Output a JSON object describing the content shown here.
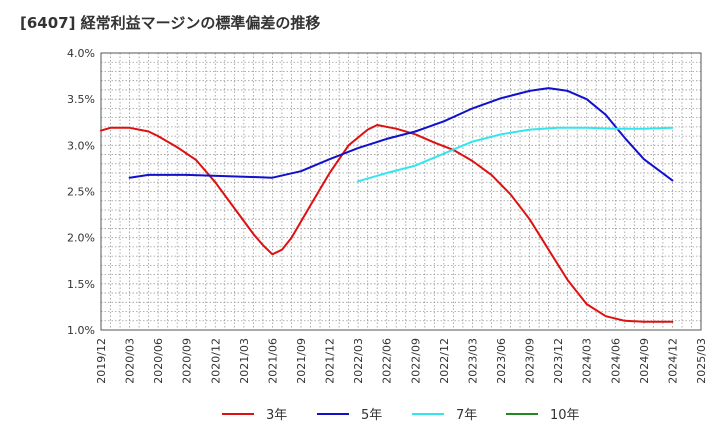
{
  "chart_data": {
    "type": "line",
    "title": "[6407]  経常利益マージンの標準偏差の推移",
    "xlabel": "",
    "ylabel": "",
    "x_categories": [
      "2019/12",
      "2020/03",
      "2020/06",
      "2020/09",
      "2020/12",
      "2021/03",
      "2021/06",
      "2021/09",
      "2021/12",
      "2022/03",
      "2022/06",
      "2022/09",
      "2022/12",
      "2023/03",
      "2023/06",
      "2023/09",
      "2023/12",
      "2024/03",
      "2024/06",
      "2024/09",
      "2024/12",
      "2025/03"
    ],
    "y_ticks": [
      "1.0%",
      "1.5%",
      "2.0%",
      "2.5%",
      "3.0%",
      "3.5%",
      "4.0%"
    ],
    "ylim": [
      1.0,
      4.0
    ],
    "grid": true,
    "legend_position": "bottom",
    "series": [
      {
        "name": "3年",
        "color": "#dd1111",
        "points": [
          [
            "2019/12",
            3.16
          ],
          [
            "2020/01",
            3.19
          ],
          [
            "2020/03",
            3.19
          ],
          [
            "2020/05",
            3.15
          ],
          [
            "2020/06",
            3.1
          ],
          [
            "2020/08",
            2.98
          ],
          [
            "2020/10",
            2.84
          ],
          [
            "2020/12",
            2.6
          ],
          [
            "2021/02",
            2.32
          ],
          [
            "2021/04",
            2.04
          ],
          [
            "2021/05",
            1.92
          ],
          [
            "2021/06",
            1.82
          ],
          [
            "2021/07",
            1.87
          ],
          [
            "2021/08",
            2.0
          ],
          [
            "2021/10",
            2.35
          ],
          [
            "2021/12",
            2.7
          ],
          [
            "2022/02",
            3.0
          ],
          [
            "2022/04",
            3.17
          ],
          [
            "2022/05",
            3.22
          ],
          [
            "2022/07",
            3.18
          ],
          [
            "2022/09",
            3.12
          ],
          [
            "2022/11",
            3.03
          ],
          [
            "2023/01",
            2.95
          ],
          [
            "2023/03",
            2.83
          ],
          [
            "2023/05",
            2.68
          ],
          [
            "2023/07",
            2.47
          ],
          [
            "2023/09",
            2.2
          ],
          [
            "2023/11",
            1.87
          ],
          [
            "2024/01",
            1.54
          ],
          [
            "2024/03",
            1.28
          ],
          [
            "2024/05",
            1.15
          ],
          [
            "2024/07",
            1.1
          ],
          [
            "2024/09",
            1.09
          ],
          [
            "2024/12",
            1.09
          ]
        ]
      },
      {
        "name": "5年",
        "color": "#1111cc",
        "points": [
          [
            "2020/03",
            2.65
          ],
          [
            "2020/05",
            2.68
          ],
          [
            "2020/09",
            2.68
          ],
          [
            "2021/03",
            2.66
          ],
          [
            "2021/06",
            2.65
          ],
          [
            "2021/09",
            2.72
          ],
          [
            "2021/12",
            2.85
          ],
          [
            "2022/03",
            2.97
          ],
          [
            "2022/06",
            3.07
          ],
          [
            "2022/09",
            3.15
          ],
          [
            "2022/12",
            3.26
          ],
          [
            "2023/03",
            3.4
          ],
          [
            "2023/06",
            3.51
          ],
          [
            "2023/09",
            3.59
          ],
          [
            "2023/11",
            3.62
          ],
          [
            "2024/01",
            3.59
          ],
          [
            "2024/03",
            3.5
          ],
          [
            "2024/05",
            3.33
          ],
          [
            "2024/07",
            3.08
          ],
          [
            "2024/09",
            2.85
          ],
          [
            "2024/12",
            2.62
          ]
        ]
      },
      {
        "name": "7年",
        "color": "#33e6ee",
        "points": [
          [
            "2022/03",
            2.61
          ],
          [
            "2022/06",
            2.7
          ],
          [
            "2022/09",
            2.78
          ],
          [
            "2022/12",
            2.91
          ],
          [
            "2023/03",
            3.04
          ],
          [
            "2023/06",
            3.12
          ],
          [
            "2023/09",
            3.17
          ],
          [
            "2023/12",
            3.19
          ],
          [
            "2024/03",
            3.19
          ],
          [
            "2024/06",
            3.18
          ],
          [
            "2024/09",
            3.18
          ],
          [
            "2024/12",
            3.19
          ]
        ]
      },
      {
        "name": "10年",
        "color": "#228822",
        "points": []
      }
    ]
  }
}
